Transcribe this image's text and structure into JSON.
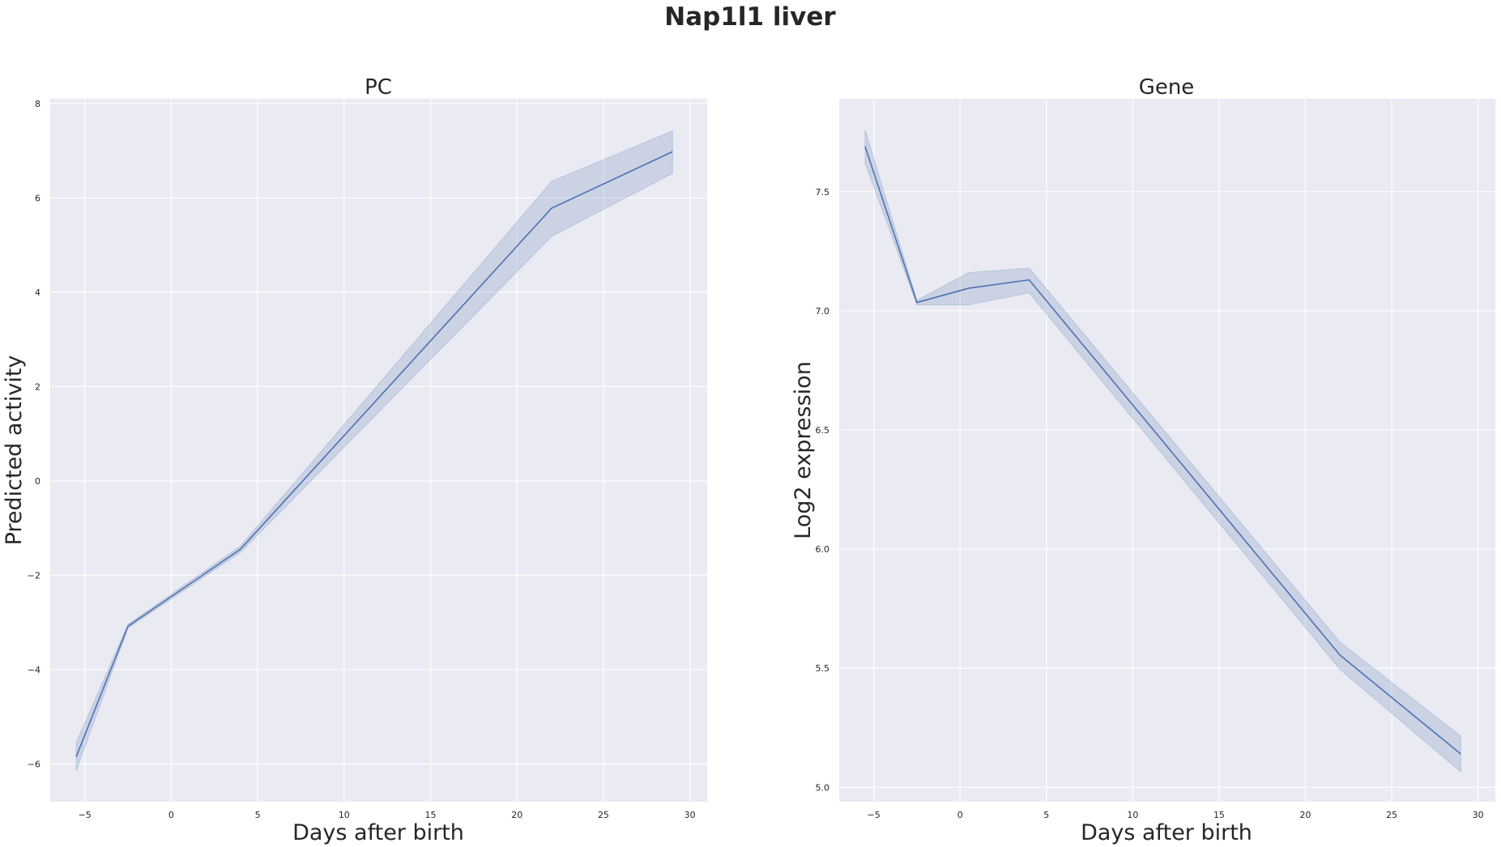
{
  "figure": {
    "title": "Nap1l1 liver"
  },
  "chart_data": [
    {
      "type": "line",
      "title": "PC",
      "xlabel": "Days after birth",
      "ylabel": "Predicted activity",
      "xlim": [
        -7,
        31
      ],
      "ylim": [
        -6.8,
        8.1
      ],
      "xticks": [
        -5,
        0,
        5,
        10,
        15,
        20,
        25,
        30
      ],
      "yticks": [
        -6,
        -4,
        -2,
        0,
        2,
        4,
        6,
        8
      ],
      "xtick_labels": [
        "−5",
        "0",
        "5",
        "10",
        "15",
        "20",
        "25",
        "30"
      ],
      "ytick_labels": [
        "−6",
        "−4",
        "−2",
        "0",
        "2",
        "4",
        "6",
        "8"
      ],
      "grid": true,
      "color": "#4c72b0",
      "x": [
        -5.5,
        -2.5,
        4,
        22,
        29
      ],
      "y": [
        -5.85,
        -3.08,
        -1.45,
        5.78,
        6.98
      ],
      "ci_lower": [
        -6.15,
        -3.12,
        -1.52,
        5.18,
        6.52
      ],
      "ci_upper": [
        -5.55,
        -3.04,
        -1.38,
        6.35,
        7.42
      ]
    },
    {
      "type": "line",
      "title": "Gene",
      "xlabel": "Days after birth",
      "ylabel": "Log2 expression",
      "xlim": [
        -7,
        31
      ],
      "ylim": [
        4.94,
        7.89
      ],
      "xticks": [
        -5,
        0,
        5,
        10,
        15,
        20,
        25,
        30
      ],
      "yticks": [
        5.0,
        5.5,
        6.0,
        6.5,
        7.0,
        7.5
      ],
      "xtick_labels": [
        "−5",
        "0",
        "5",
        "10",
        "15",
        "20",
        "25",
        "30"
      ],
      "ytick_labels": [
        "5.0",
        "5.5",
        "6.0",
        "6.5",
        "7.0",
        "7.5"
      ],
      "grid": true,
      "color": "#4c72b0",
      "x": [
        -5.5,
        -2.5,
        0.5,
        4,
        22,
        29
      ],
      "y": [
        7.69,
        7.035,
        7.095,
        7.13,
        5.555,
        5.14
      ],
      "ci_lower": [
        7.62,
        7.025,
        7.025,
        7.075,
        5.495,
        5.065
      ],
      "ci_upper": [
        7.76,
        7.045,
        7.16,
        7.18,
        5.61,
        5.215
      ]
    }
  ]
}
